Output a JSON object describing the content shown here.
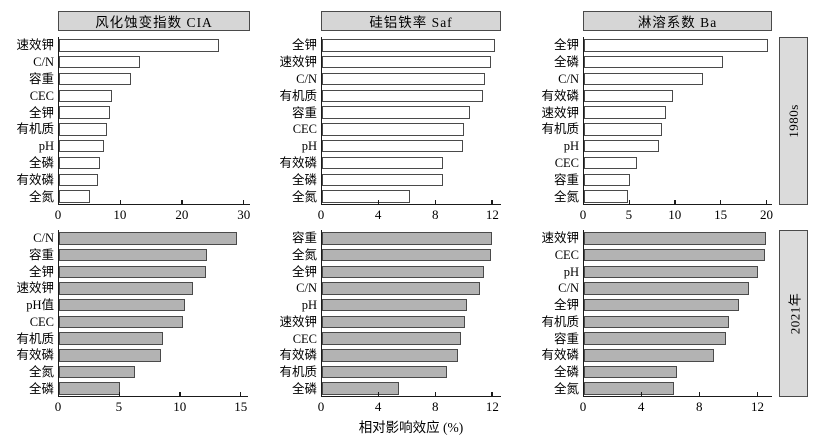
{
  "figure": {
    "xlabel": "相对影响效应 (%)",
    "columns": [
      "风化蚀变指数 CIA",
      "硅铝铁率 Saf",
      "淋溶系数 Ba"
    ],
    "rows": [
      "1980s",
      "2021年"
    ],
    "colors": {
      "bar_fill_white": "#ffffff",
      "bar_fill_gray": "#b3b3b3",
      "bar_stroke": "#4a4a4a",
      "box_fill": "#d6d6d6",
      "axis": "#1a1a1a",
      "text": "#000000"
    }
  },
  "chart_data": [
    {
      "type": "bar",
      "orientation": "horizontal",
      "title": "风化蚀变指数 CIA",
      "row_label": "1980s",
      "fill": "white",
      "categories": [
        "速效钾",
        "C/N",
        "容重",
        "CEC",
        "全钾",
        "有机质",
        "pH",
        "全磷",
        "有效磷",
        "全氮"
      ],
      "values": [
        26.0,
        13.1,
        11.7,
        8.6,
        8.2,
        7.8,
        7.3,
        6.6,
        6.3,
        5.0
      ],
      "xticks": [
        0,
        10,
        20,
        30
      ],
      "xlim": [
        0,
        31
      ]
    },
    {
      "type": "bar",
      "orientation": "horizontal",
      "title": "硅铝铁率 Saf",
      "row_label": "1980s",
      "fill": "white",
      "categories": [
        "全钾",
        "速效钾",
        "C/N",
        "有机质",
        "容重",
        "CEC",
        "pH",
        "有效磷",
        "全磷",
        "全氮"
      ],
      "values": [
        12.2,
        11.9,
        11.5,
        11.3,
        10.4,
        10.0,
        9.9,
        8.5,
        8.5,
        6.2
      ],
      "xticks": [
        0,
        4,
        8,
        12
      ],
      "xlim": [
        0,
        12.6
      ]
    },
    {
      "type": "bar",
      "orientation": "horizontal",
      "title": "淋溶系数 Ba",
      "row_label": "1980s",
      "fill": "white",
      "categories": [
        "全钾",
        "全磷",
        "C/N",
        "有效磷",
        "速效钾",
        "有机质",
        "pH",
        "CEC",
        "容重",
        "全氮"
      ],
      "values": [
        20.2,
        15.2,
        13.0,
        9.7,
        9.0,
        8.6,
        8.2,
        5.8,
        5.0,
        4.8
      ],
      "xticks": [
        0,
        5,
        10,
        15,
        20
      ],
      "xlim": [
        0,
        20.6
      ]
    },
    {
      "type": "bar",
      "orientation": "horizontal",
      "title": "风化蚀变指数 CIA",
      "row_label": "2021年",
      "fill": "gray",
      "categories": [
        "C/N",
        "容重",
        "全钾",
        "速效钾",
        "pH值",
        "CEC",
        "有机质",
        "有效磷",
        "全氮",
        "全磷"
      ],
      "values": [
        14.7,
        12.2,
        12.1,
        11.1,
        10.4,
        10.2,
        8.6,
        8.4,
        6.3,
        5.0
      ],
      "xticks": [
        0,
        5,
        10,
        15
      ],
      "xlim": [
        0,
        15.6
      ]
    },
    {
      "type": "bar",
      "orientation": "horizontal",
      "title": "硅铝铁率 Saf",
      "row_label": "2021年",
      "fill": "gray",
      "categories": [
        "容重",
        "全氮",
        "全钾",
        "C/N",
        "pH",
        "速效钾",
        "CEC",
        "有效磷",
        "有机质",
        "全磷"
      ],
      "values": [
        12.0,
        11.9,
        11.4,
        11.1,
        10.2,
        10.1,
        9.8,
        9.6,
        8.8,
        5.4
      ],
      "xticks": [
        0,
        4,
        8,
        12
      ],
      "xlim": [
        0,
        12.6
      ],
      "xlabel": "相对影响效应 (%)"
    },
    {
      "type": "bar",
      "orientation": "horizontal",
      "title": "淋溶系数 Ba",
      "row_label": "2021年",
      "fill": "gray",
      "categories": [
        "速效钾",
        "CEC",
        "pH",
        "C/N",
        "全钾",
        "有机质",
        "容重",
        "有效磷",
        "全磷",
        "全氮"
      ],
      "values": [
        12.6,
        12.5,
        12.0,
        11.4,
        10.7,
        10.0,
        9.8,
        9.0,
        6.4,
        6.2
      ],
      "xticks": [
        0,
        4,
        8,
        12
      ],
      "xlim": [
        0,
        13.0
      ]
    }
  ]
}
